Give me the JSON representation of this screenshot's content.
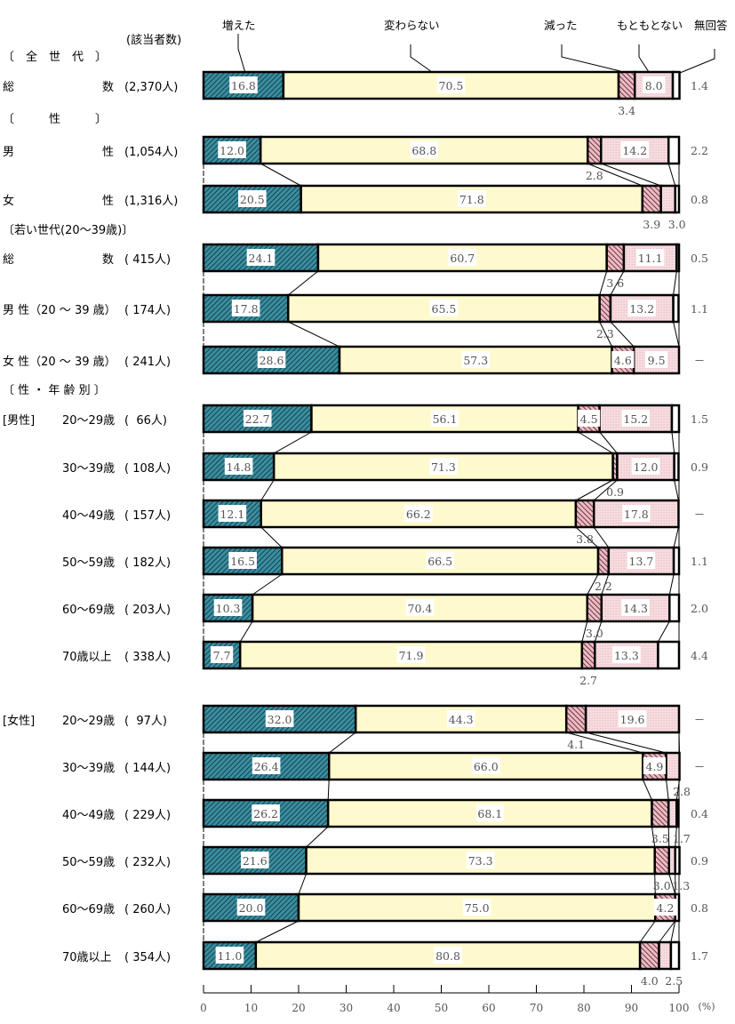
{
  "header": {
    "count_label": "(該当者数)",
    "legend": [
      "増えた",
      "変わらない",
      "減った",
      "もともとない",
      "無回答"
    ]
  },
  "axis": {
    "ticks": [
      "0",
      "10",
      "20",
      "30",
      "40",
      "50",
      "60",
      "70",
      "80",
      "90",
      "100"
    ],
    "unit": "(%)"
  },
  "section_labels": {
    "all": "〔　全　世　代　〕",
    "sex": "〔　　　性　　　〕",
    "young": "〔若い世代(20～39歳)〕",
    "sex_age": "〔 性 ・ 年 齢 別 〕",
    "male": "[男性]",
    "female": "[女性]"
  },
  "chart_data": {
    "type": "bar",
    "orientation": "horizontal",
    "stacked": true,
    "title": "",
    "xlabel": "(%)",
    "ylabel": "",
    "xlim": [
      0,
      100
    ],
    "legend_position": "top",
    "series_names": [
      "増えた",
      "変わらない",
      "減った",
      "もともとない",
      "無回答"
    ],
    "colors": [
      "#2e7d8c",
      "#fffacd",
      "#c98a98",
      "#f4d8dc",
      "#ffffff"
    ],
    "rows": [
      {
        "group": "全世代",
        "label_left": "総",
        "label_right": "数",
        "n": "(2,370人)",
        "values": [
          16.8,
          70.5,
          3.4,
          8.0,
          1.4
        ],
        "display": [
          "16.8",
          "70.5",
          "3.4",
          "8.0",
          "1.4"
        ]
      },
      {
        "group": "性",
        "label_left": "男",
        "label_right": "性",
        "n": "(1,054人)",
        "values": [
          12.0,
          68.8,
          2.8,
          14.2,
          2.2
        ],
        "display": [
          "12.0",
          "68.8",
          "2.8",
          "14.2",
          "2.2"
        ]
      },
      {
        "group": "性",
        "label_left": "女",
        "label_right": "性",
        "n": "(1,316人)",
        "values": [
          20.5,
          71.8,
          3.9,
          3.0,
          0.8
        ],
        "display": [
          "20.5",
          "71.8",
          "3.9",
          "3.0",
          "0.8"
        ]
      },
      {
        "group": "若い世代(20～39歳)",
        "label_left": "総",
        "label_right": "数",
        "n": "( 415人)",
        "values": [
          24.1,
          60.7,
          3.6,
          11.1,
          0.5
        ],
        "display": [
          "24.1",
          "60.7",
          "3.6",
          "11.1",
          "0.5"
        ]
      },
      {
        "group": "若い世代(20～39歳)",
        "label_left": "男 性（20 ～ 39 歳）",
        "label_right": "",
        "n": "( 174人)",
        "values": [
          17.8,
          65.5,
          2.3,
          13.2,
          1.1
        ],
        "display": [
          "17.8",
          "65.5",
          "2.3",
          "13.2",
          "1.1"
        ]
      },
      {
        "group": "若い世代(20～39歳)",
        "label_left": "女 性（20 ～ 39 歳）",
        "label_right": "",
        "n": "( 241人)",
        "values": [
          28.6,
          57.3,
          4.6,
          9.5,
          0
        ],
        "display": [
          "28.6",
          "57.3",
          "4.6",
          "9.5",
          "－"
        ]
      },
      {
        "group": "男性",
        "label_left": "20～29歳",
        "label_right": "",
        "n": "(  66人)",
        "values": [
          22.7,
          56.1,
          4.5,
          15.2,
          1.5
        ],
        "display": [
          "22.7",
          "56.1",
          "4.5",
          "15.2",
          "1.5"
        ]
      },
      {
        "group": "男性",
        "label_left": "30～39歳",
        "label_right": "",
        "n": "( 108人)",
        "values": [
          14.8,
          71.3,
          0.9,
          12.0,
          0.9
        ],
        "display": [
          "14.8",
          "71.3",
          "0.9",
          "12.0",
          "0.9"
        ]
      },
      {
        "group": "男性",
        "label_left": "40～49歳",
        "label_right": "",
        "n": "( 157人)",
        "values": [
          12.1,
          66.2,
          3.8,
          17.8,
          0
        ],
        "display": [
          "12.1",
          "66.2",
          "3.8",
          "17.8",
          "－"
        ]
      },
      {
        "group": "男性",
        "label_left": "50～59歳",
        "label_right": "",
        "n": "( 182人)",
        "values": [
          16.5,
          66.5,
          2.2,
          13.7,
          1.1
        ],
        "display": [
          "16.5",
          "66.5",
          "2.2",
          "13.7",
          "1.1"
        ]
      },
      {
        "group": "男性",
        "label_left": "60～69歳",
        "label_right": "",
        "n": "( 203人)",
        "values": [
          10.3,
          70.4,
          3.0,
          14.3,
          2.0
        ],
        "display": [
          "10.3",
          "70.4",
          "3.0",
          "14.3",
          "2.0"
        ]
      },
      {
        "group": "男性",
        "label_left": "70歳以上",
        "label_right": "",
        "n": "( 338人)",
        "values": [
          7.7,
          71.9,
          2.7,
          13.3,
          4.4
        ],
        "display": [
          "7.7",
          "71.9",
          "2.7",
          "13.3",
          "4.4"
        ]
      },
      {
        "group": "女性",
        "label_left": "20～29歳",
        "label_right": "",
        "n": "(  97人)",
        "values": [
          32.0,
          44.3,
          4.1,
          19.6,
          0
        ],
        "display": [
          "32.0",
          "44.3",
          "4.1",
          "19.6",
          "－"
        ]
      },
      {
        "group": "女性",
        "label_left": "30～39歳",
        "label_right": "",
        "n": "( 144人)",
        "values": [
          26.4,
          66.0,
          4.9,
          2.8,
          0
        ],
        "display": [
          "26.4",
          "66.0",
          "4.9",
          "2.8",
          "－"
        ]
      },
      {
        "group": "女性",
        "label_left": "40～49歳",
        "label_right": "",
        "n": "( 229人)",
        "values": [
          26.2,
          68.1,
          3.5,
          1.7,
          0.4
        ],
        "display": [
          "26.2",
          "68.1",
          "3.5",
          "1.7",
          "0.4"
        ]
      },
      {
        "group": "女性",
        "label_left": "50～59歳",
        "label_right": "",
        "n": "( 232人)",
        "values": [
          21.6,
          73.3,
          3.0,
          1.3,
          0.9
        ],
        "display": [
          "21.6",
          "73.3",
          "3.0",
          "1.3",
          "0.9"
        ]
      },
      {
        "group": "女性",
        "label_left": "60～69歳",
        "label_right": "",
        "n": "( 260人)",
        "values": [
          20.0,
          75.0,
          4.2,
          0,
          0.8
        ],
        "display": [
          "20.0",
          "75.0",
          "4.2",
          "－",
          "0.8"
        ]
      },
      {
        "group": "女性",
        "label_left": "70歳以上",
        "label_right": "",
        "n": "( 354人)",
        "values": [
          11.0,
          80.8,
          4.0,
          2.5,
          1.7
        ],
        "display": [
          "11.0",
          "80.8",
          "4.0",
          "2.5",
          "1.7"
        ]
      }
    ]
  }
}
